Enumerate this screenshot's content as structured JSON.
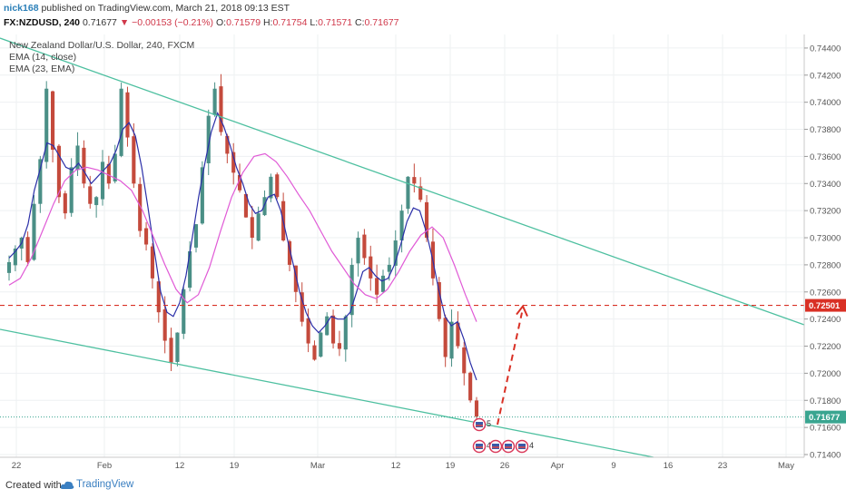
{
  "header": {
    "author": "nick168",
    "published": " published on TradingView.com, March 21, 2018 09:13 EST",
    "symbol": "FX:NZDUSD, 240",
    "last": "0.71677",
    "change_arrow": "▼",
    "change": "−0.00153 (−0.21%)",
    "o_label": "O:",
    "o": "0.71579",
    "h_label": "H:",
    "h": "0.71754",
    "l_label": "L:",
    "l": "0.71571",
    "c_label": "C:",
    "c": "0.71677"
  },
  "legend": {
    "title": "New Zealand Dollar/U.S. Dollar, 240, FXCM",
    "ema1": "EMA (14, close)",
    "ema2": "EMA (23, EMA)"
  },
  "footer": {
    "created": "Created with",
    "brand": "TradingView"
  },
  "colors": {
    "up": "#4a8f86",
    "down": "#c44a3c",
    "ema14": "#2b2fa8",
    "ema23": "#e05ad6",
    "trendline": "#4ec0a0",
    "resistance": "#d93025",
    "current": "#3aa590"
  },
  "chart_data": {
    "type": "candlestick",
    "title": "New Zealand Dollar/U.S. Dollar, 240, FXCM",
    "symbol": "FX:NZDUSD",
    "interval": "240",
    "x_tick_labels": [
      "22",
      "Feb",
      "12",
      "19",
      "Mar",
      "12",
      "19",
      "26",
      "Apr",
      "9",
      "16",
      "23",
      "May"
    ],
    "y_tick_labels": [
      "0.71400",
      "0.71600",
      "0.71800",
      "0.72000",
      "0.72200",
      "0.72400",
      "0.72600",
      "0.72800",
      "0.73000",
      "0.73200",
      "0.73400",
      "0.73600",
      "0.73800",
      "0.74000",
      "0.74200",
      "0.74400"
    ],
    "ylim": [
      0.7138,
      0.745
    ],
    "price_labels": {
      "resistance": "0.72501",
      "last": "0.71677"
    },
    "ohlc_last": {
      "open": 0.71579,
      "high": 0.71754,
      "low": 0.71571,
      "close": 0.71677
    },
    "closes_approx": [
      0.7282,
      0.7292,
      0.73,
      0.7282,
      0.7325,
      0.7358,
      0.741,
      0.7365,
      0.733,
      0.7318,
      0.7352,
      0.7368,
      0.734,
      0.7325,
      0.733,
      0.7356,
      0.734,
      0.7362,
      0.741,
      0.7374,
      0.734,
      0.7305,
      0.7295,
      0.727,
      0.7245,
      0.7224,
      0.7208,
      0.723,
      0.7262,
      0.729,
      0.731,
      0.7352,
      0.739,
      0.741,
      0.7378,
      0.7362,
      0.7348,
      0.7335,
      0.7315,
      0.73,
      0.7318,
      0.733,
      0.7345,
      0.733,
      0.7298,
      0.728,
      0.726,
      0.7238,
      0.7222,
      0.721,
      0.723,
      0.7242,
      0.7222,
      0.7218,
      0.7242,
      0.728,
      0.73,
      0.7285,
      0.727,
      0.7258,
      0.7272,
      0.728,
      0.7298,
      0.732,
      0.7345,
      0.734,
      0.7328,
      0.73,
      0.727,
      0.724,
      0.7212,
      0.7238,
      0.722,
      0.72,
      0.718,
      0.7168
    ],
    "ema14_approx": [
      0.7285,
      0.729,
      0.7296,
      0.731,
      0.7335,
      0.7352,
      0.737,
      0.7368,
      0.736,
      0.7352,
      0.735,
      0.7355,
      0.7348,
      0.734,
      0.7345,
      0.735,
      0.7355,
      0.7365,
      0.738,
      0.7385,
      0.7375,
      0.7352,
      0.7322,
      0.729,
      0.726,
      0.7245,
      0.7242,
      0.7252,
      0.7272,
      0.73,
      0.733,
      0.7355,
      0.7378,
      0.7392,
      0.7382,
      0.7368,
      0.7352,
      0.734,
      0.7325,
      0.7318,
      0.732,
      0.733,
      0.7332,
      0.732,
      0.73,
      0.728,
      0.726,
      0.7245,
      0.7235,
      0.723,
      0.7235,
      0.7242,
      0.724,
      0.724,
      0.7245,
      0.726,
      0.7275,
      0.7278,
      0.7272,
      0.7268,
      0.727,
      0.728,
      0.7295,
      0.7312,
      0.7322,
      0.732,
      0.7305,
      0.7285,
      0.7262,
      0.7242,
      0.7235,
      0.7238,
      0.7225,
      0.7208,
      0.7195
    ],
    "ema23_approx": [
      0.7265,
      0.727,
      0.7285,
      0.7305,
      0.7325,
      0.7342,
      0.735,
      0.7352,
      0.735,
      0.7346,
      0.7342,
      0.7335,
      0.732,
      0.73,
      0.728,
      0.7262,
      0.7252,
      0.7258,
      0.7278,
      0.7305,
      0.733,
      0.7348,
      0.736,
      0.7362,
      0.7356,
      0.7345,
      0.7332,
      0.732,
      0.7305,
      0.729,
      0.7278,
      0.7266,
      0.7258,
      0.7255,
      0.7262,
      0.7275,
      0.729,
      0.7302,
      0.7308,
      0.73,
      0.728,
      0.7258,
      0.7238
    ],
    "annotations": {
      "upper_trendline": "descending channel top",
      "lower_trendline": "descending channel bottom",
      "resistance_level": 0.72501,
      "projection": "dashed up arrow toward 0.72501"
    },
    "event_badges": [
      "5",
      "4",
      "3",
      "3",
      "4"
    ]
  }
}
